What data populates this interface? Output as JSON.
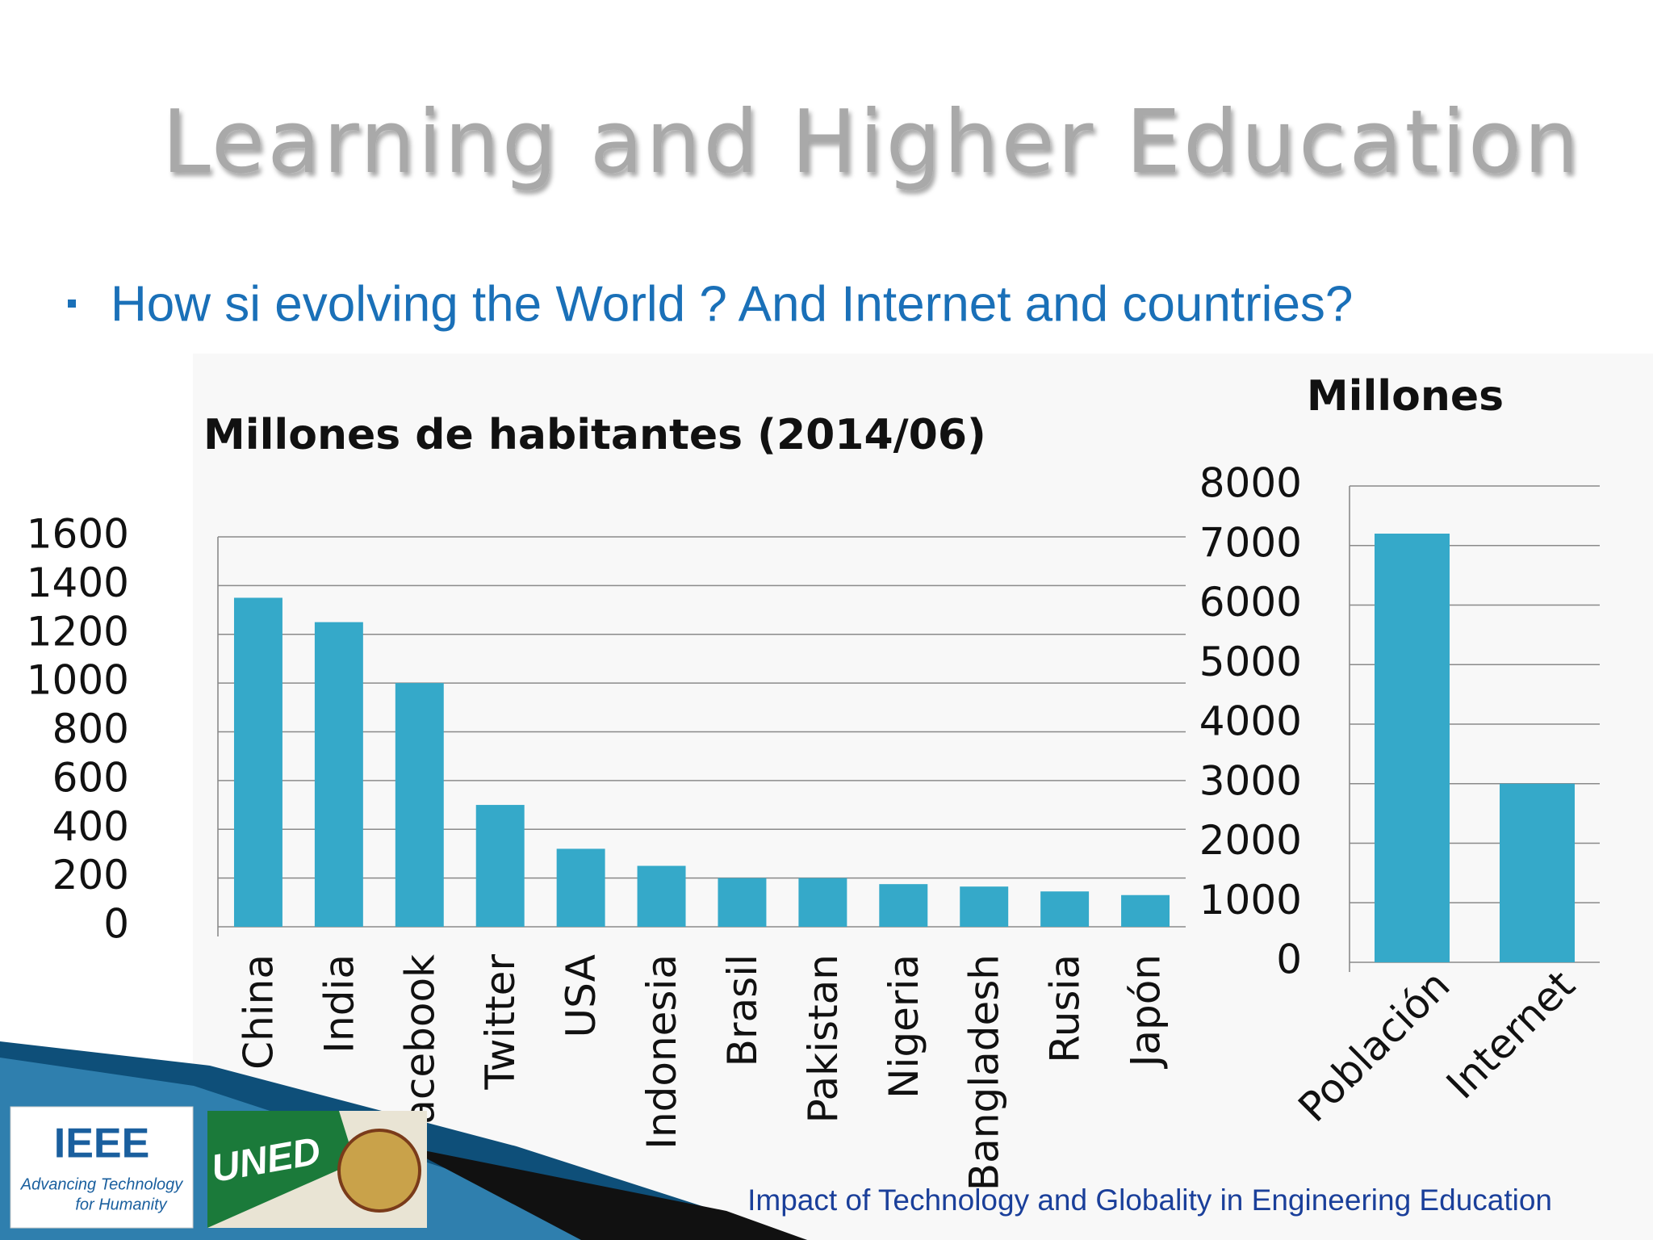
{
  "slide": {
    "title": "Learning and Higher Education",
    "bullet": "How si evolving the World ? And Internet and countries?",
    "footer": "Impact of Technology and Globality in Engineering Education",
    "logos": {
      "ieee": "IEEE",
      "ieee_tagline_1": "Advancing Technology",
      "ieee_tagline_2": "for Humanity",
      "uned": "UNED"
    }
  },
  "chart_data": [
    {
      "type": "bar",
      "title": "Millones de habitantes (2014/06)",
      "categories": [
        "China",
        "India",
        "Facebook",
        "Twitter",
        "USA",
        "Indonesia",
        "Brasil",
        "Pakistan",
        "Nigeria",
        "Bangladesh",
        "Rusia",
        "Japón"
      ],
      "values": [
        1350,
        1250,
        1000,
        500,
        320,
        250,
        200,
        200,
        175,
        165,
        145,
        130
      ],
      "color": "#35a9c9",
      "ylim": [
        0,
        1600
      ],
      "yticks": [
        0,
        200,
        400,
        600,
        800,
        1000,
        1200,
        1400,
        1600
      ],
      "grid": true
    },
    {
      "type": "bar",
      "title": "Millones",
      "categories": [
        "Población",
        "Internet"
      ],
      "values": [
        7200,
        3000
      ],
      "color": "#35a9c9",
      "ylim": [
        0,
        8000
      ],
      "yticks": [
        0,
        1000,
        2000,
        3000,
        4000,
        5000,
        6000,
        7000,
        8000
      ],
      "grid": true
    }
  ]
}
